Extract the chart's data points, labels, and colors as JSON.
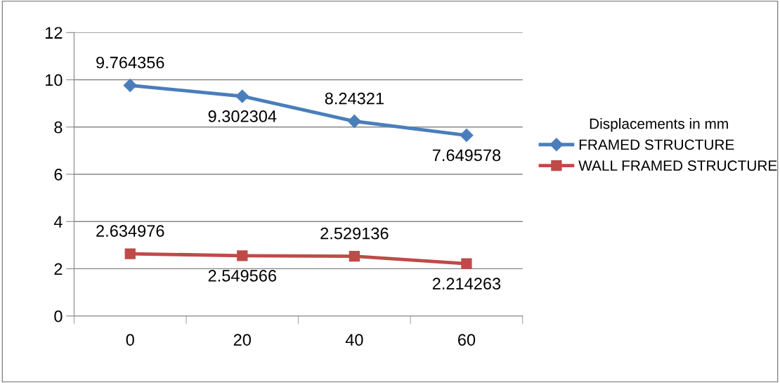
{
  "chart_data": {
    "type": "line",
    "categories": [
      "0",
      "20",
      "40",
      "60"
    ],
    "series": [
      {
        "name": "FRAMED STRUCTURE",
        "color": "#4a7ebb",
        "marker": "diamond",
        "values": [
          9.764356,
          9.302304,
          8.24321,
          7.649578
        ]
      },
      {
        "name": "WALL FRAMED STRUCTURE",
        "color": "#be4b48",
        "marker": "square",
        "values": [
          2.634976,
          2.549566,
          2.529136,
          2.214263
        ]
      }
    ],
    "ylim": [
      0,
      12
    ],
    "yticks": [
      0,
      2,
      4,
      6,
      8,
      10,
      12
    ],
    "grid": "y",
    "legend": "right",
    "legend_title": "Displacements in mm",
    "data_labels": true,
    "line_style": "solid"
  }
}
